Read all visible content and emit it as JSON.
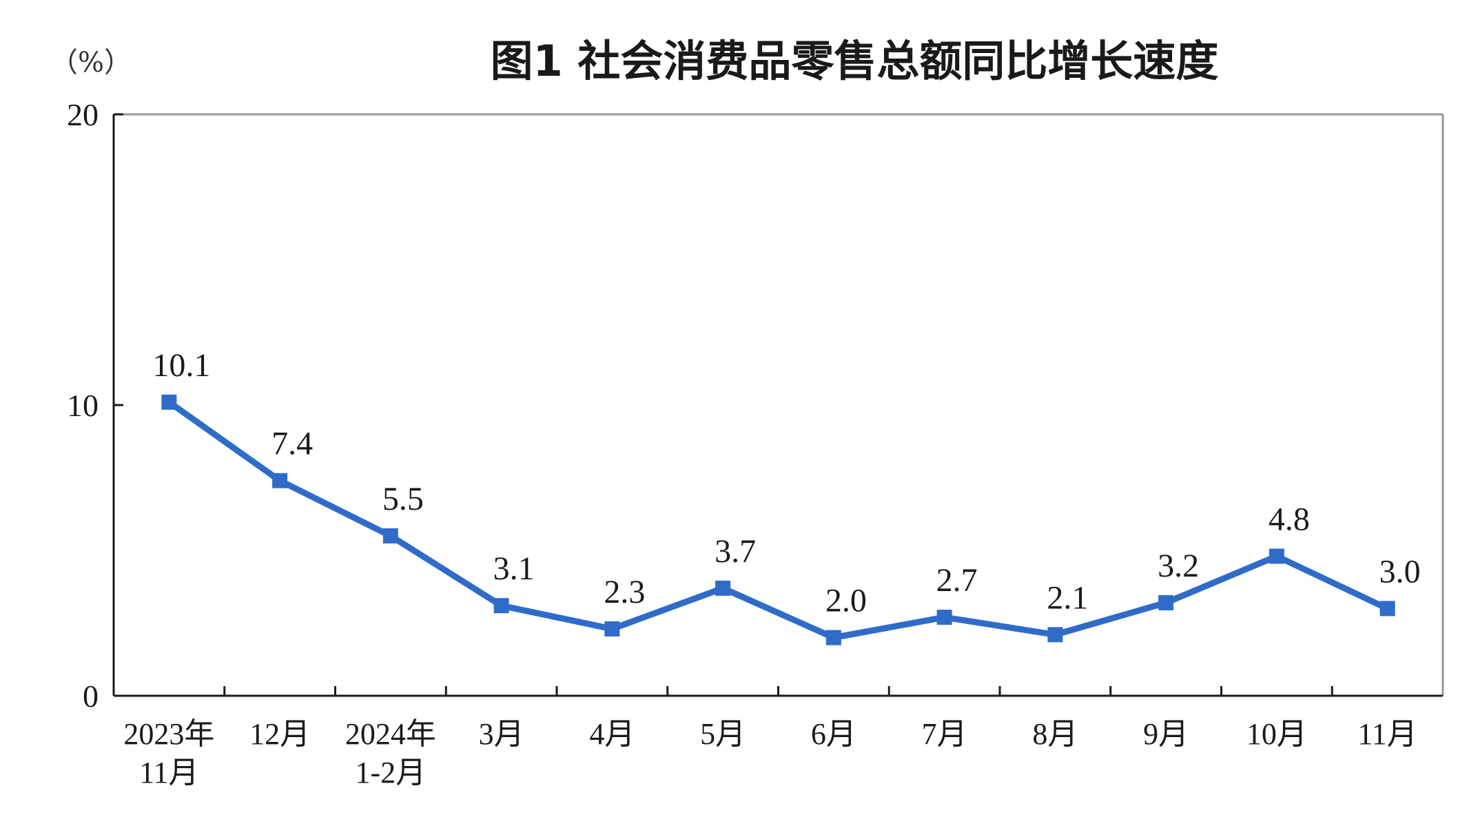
{
  "chart_data": {
    "type": "line",
    "title": "图1  社会消费品零售总额同比增长速度",
    "unit_label": "（%）",
    "ylim": [
      0,
      20
    ],
    "yticks": [
      "0",
      "10",
      "20"
    ],
    "ytick_values": [
      0,
      10,
      20
    ],
    "grid": false,
    "legend": "none",
    "line_color": "#2f6cc9",
    "categories": [
      [
        "2023年",
        "11月"
      ],
      [
        "12月"
      ],
      [
        "2024年",
        "1-2月"
      ],
      [
        "3月"
      ],
      [
        "4月"
      ],
      [
        "5月"
      ],
      [
        "6月"
      ],
      [
        "7月"
      ],
      [
        "8月"
      ],
      [
        "9月"
      ],
      [
        "10月"
      ],
      [
        "11月"
      ]
    ],
    "values": [
      10.1,
      7.4,
      5.5,
      3.1,
      2.3,
      3.7,
      2.0,
      2.7,
      2.1,
      3.2,
      4.8,
      3.0
    ],
    "data_labels": [
      "10.1",
      "7.4",
      "5.5",
      "3.1",
      "2.3",
      "3.7",
      "2.0",
      "2.7",
      "2.1",
      "3.2",
      "4.8",
      "3.0"
    ]
  }
}
